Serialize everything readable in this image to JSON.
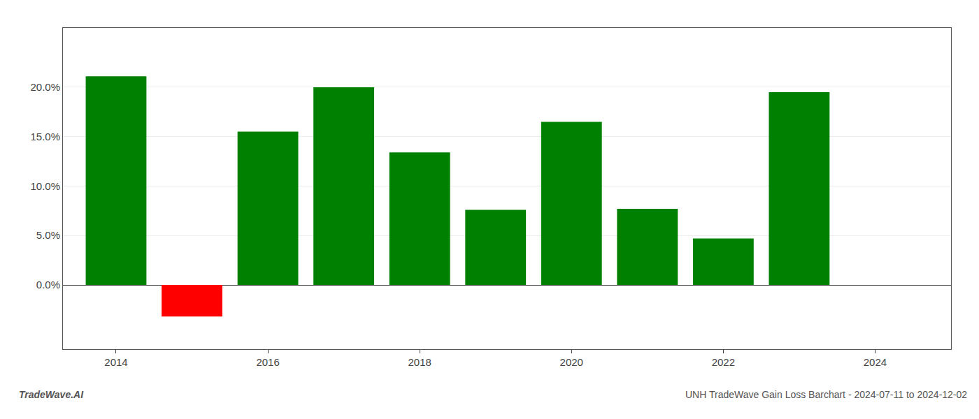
{
  "chart_data": {
    "type": "bar",
    "x": [
      2014,
      2015,
      2016,
      2017,
      2018,
      2019,
      2020,
      2021,
      2022,
      2023
    ],
    "values": [
      0.211,
      -0.032,
      0.155,
      0.2,
      0.134,
      0.076,
      0.165,
      0.077,
      0.047,
      0.195
    ],
    "colors": [
      "#008000",
      "#ff0000",
      "#008000",
      "#008000",
      "#008000",
      "#008000",
      "#008000",
      "#008000",
      "#008000",
      "#008000"
    ],
    "xlim": [
      2013.3,
      2025.0
    ],
    "xticks": [
      2014,
      2016,
      2018,
      2020,
      2022,
      2024
    ],
    "ylim": [
      -0.065,
      0.26
    ],
    "yticks": [
      {
        "value": 0.0,
        "label": "0.0%"
      },
      {
        "value": 0.05,
        "label": "5.0%"
      },
      {
        "value": 0.1,
        "label": "10.0%"
      },
      {
        "value": 0.15,
        "label": "15.0%"
      },
      {
        "value": 0.2,
        "label": "20.0%"
      }
    ],
    "grid": true,
    "annotations": [
      "TradeWave.AI",
      "UNH TradeWave Gain Loss Barchart - 2024-07-11 to 2024-12-02"
    ]
  }
}
